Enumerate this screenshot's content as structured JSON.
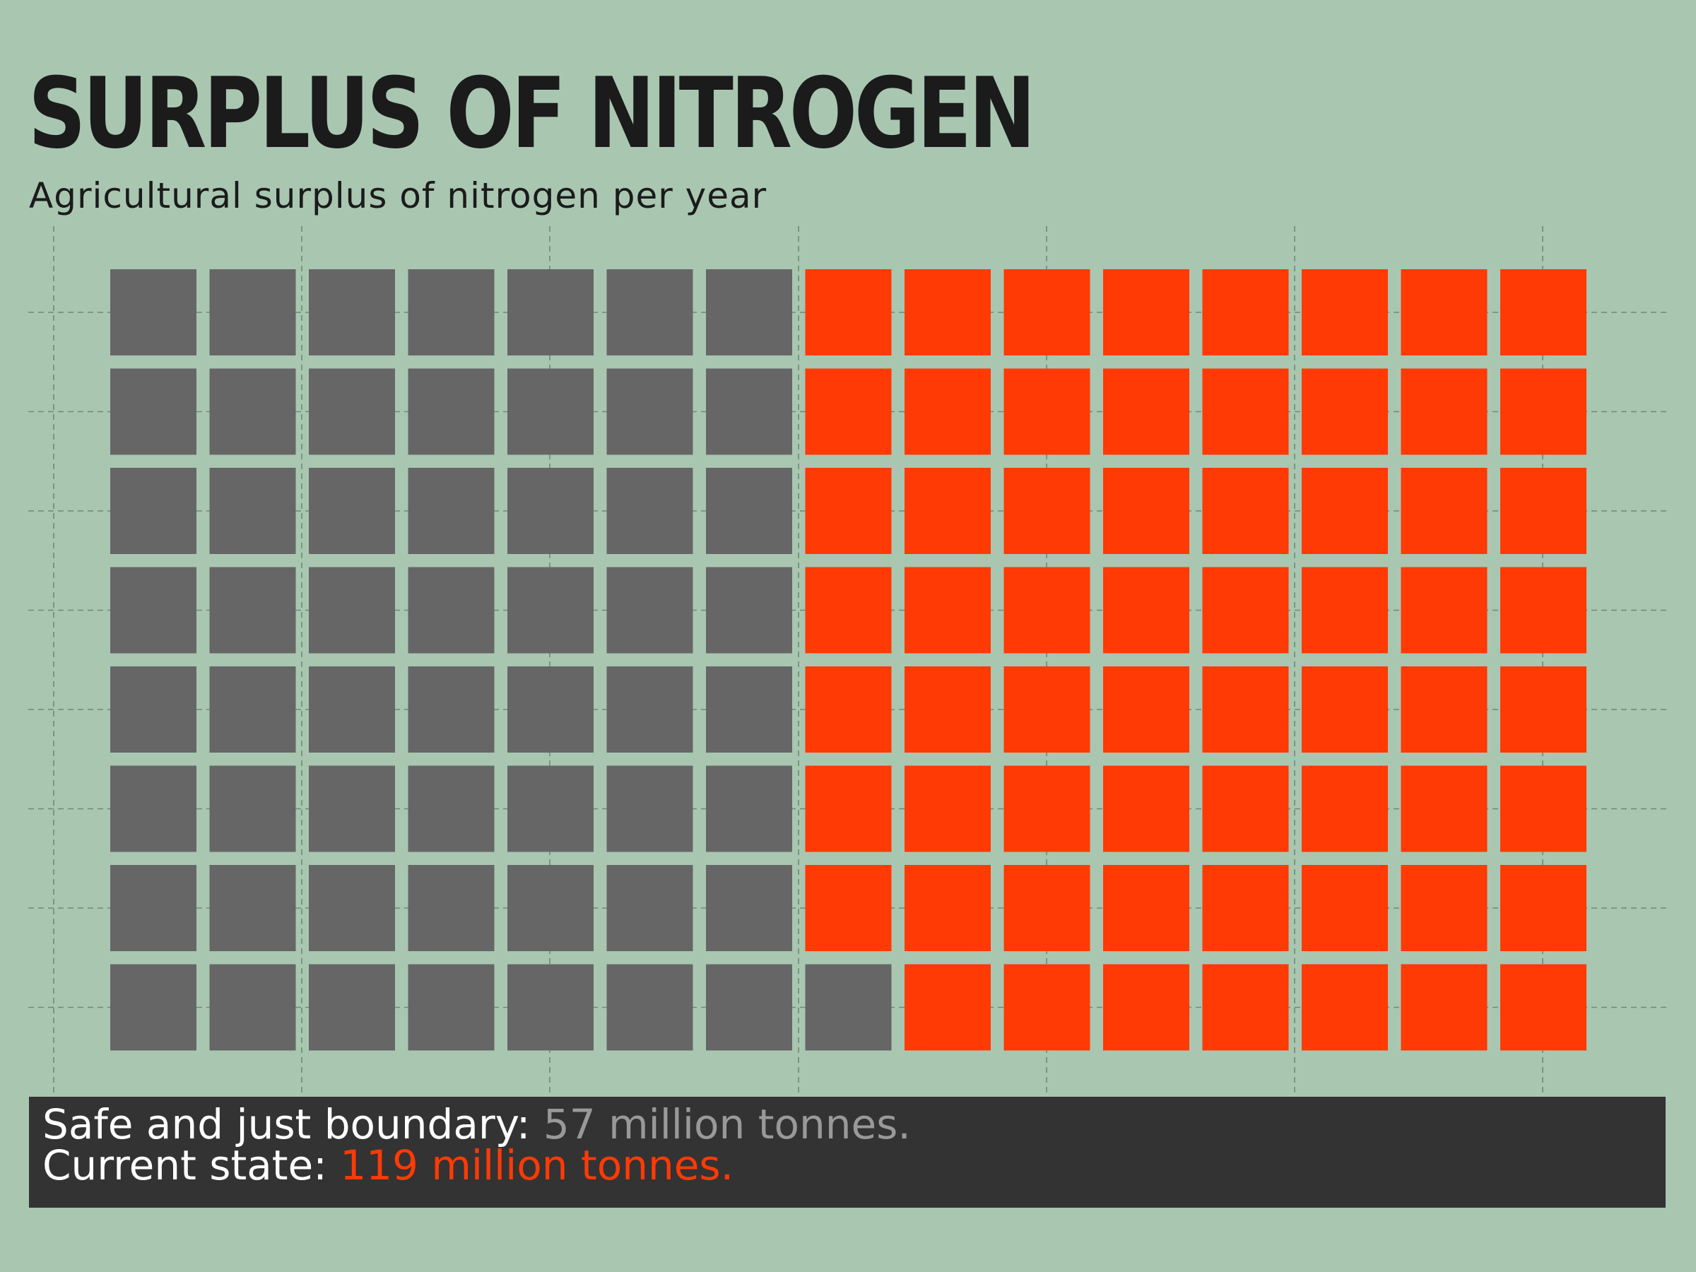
{
  "title": "SURPLUS OF NITROGEN",
  "subtitle": "Agricultural surplus of nitrogen per year",
  "footer": {
    "safe_label": "Safe and just boundary: ",
    "safe_value": "57 million tonnes.",
    "current_label": "Current state: ",
    "current_value": "119 million tonnes."
  },
  "colors": {
    "background": "#a9c6b1",
    "safe": "#666666",
    "surplus": "#ff3a05",
    "footer_bg": "#333333",
    "guide": "#6f8a76"
  },
  "chart_data": {
    "type": "waffle",
    "title": "SURPLUS OF NITROGEN",
    "subtitle": "Agricultural surplus of nitrogen per year",
    "unit": "million tonnes",
    "columns": 15,
    "rows": 8,
    "fill_order": "column-major, starting at the bottom-left square and moving up each column",
    "series": [
      {
        "name": "Safe and just boundary",
        "value": 57,
        "color": "#666666"
      },
      {
        "name": "Current state",
        "value": 119,
        "color": "#ff3a05"
      }
    ]
  }
}
